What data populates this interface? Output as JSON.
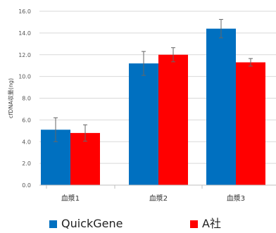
{
  "chart_data": {
    "type": "bar",
    "title": "",
    "xlabel": "",
    "ylabel": "cfDNA収量(ng)",
    "ylim": [
      0,
      16
    ],
    "yticks": [
      "0.0",
      "2.0",
      "4.0",
      "6.0",
      "8.0",
      "10.0",
      "12.0",
      "14.0",
      "16.0"
    ],
    "categories": [
      "血漿1",
      "血漿2",
      "血漿3"
    ],
    "series": [
      {
        "name": "QuickGene",
        "color": "#0070c0",
        "values": [
          5.1,
          11.2,
          14.4
        ],
        "errors": [
          1.1,
          1.1,
          0.85
        ]
      },
      {
        "name": "A社",
        "color": "#ff0000",
        "values": [
          4.8,
          12.0,
          11.3
        ],
        "errors": [
          0.75,
          0.65,
          0.35
        ]
      }
    ],
    "grid": true,
    "legend_position": "bottom"
  }
}
